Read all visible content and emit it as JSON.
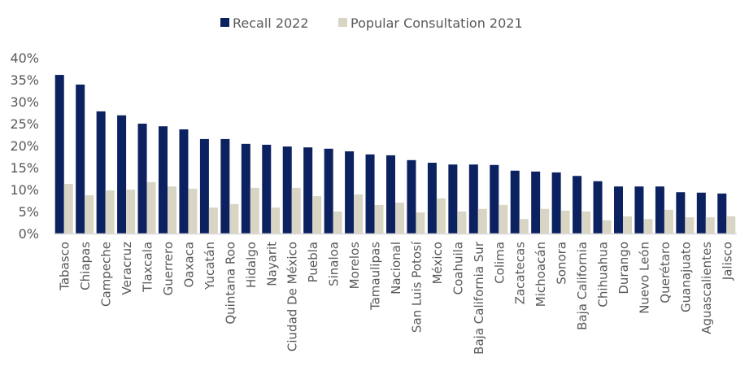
{
  "chart_data": {
    "type": "bar",
    "title": "",
    "xlabel": "",
    "ylabel": "",
    "ylim": [
      0,
      40
    ],
    "yticks": [
      "0%",
      "5%",
      "10%",
      "15%",
      "20%",
      "25%",
      "30%",
      "35%",
      "40%"
    ],
    "ytick_values": [
      0,
      5,
      10,
      15,
      20,
      25,
      30,
      35,
      40
    ],
    "grid": false,
    "legend_position": "top-center",
    "categories": [
      "Tabasco",
      "Chiapas",
      "Campeche",
      "Veracruz",
      "Tlaxcala",
      "Guerrero",
      "Oaxaca",
      "Yucatán",
      "Quintana Roo",
      "Hidalgo",
      "Nayarit",
      "Ciudad De México",
      "Puebla",
      "Sinaloa",
      "Morelos",
      "Tamaulipas",
      "Nacional",
      "San Luis Potosí",
      "México",
      "Coahuila",
      "Baja California Sur",
      "Colima",
      "Zacatecas",
      "Michoacán",
      "Sonora",
      "Baja California",
      "Chihuahua",
      "Durango",
      "Nuevo León",
      "Querétaro",
      "Guanajuato",
      "Aguascalientes",
      "Jalisco"
    ],
    "series": [
      {
        "name": "Recall 2022",
        "color": "#0b2160",
        "values": [
          36.1,
          33.9,
          27.8,
          26.9,
          25.0,
          24.4,
          23.7,
          21.5,
          21.5,
          20.4,
          20.2,
          19.8,
          19.6,
          19.3,
          18.7,
          18.0,
          17.8,
          16.7,
          16.1,
          15.7,
          15.7,
          15.6,
          14.3,
          14.1,
          13.9,
          13.1,
          11.9,
          10.7,
          10.7,
          10.7,
          9.4,
          9.3,
          9.1
        ]
      },
      {
        "name": "Popular Consultation 2021",
        "color": "#d9d5c5",
        "values": [
          11.3,
          8.7,
          9.8,
          10.0,
          11.7,
          10.7,
          10.2,
          5.9,
          6.7,
          10.4,
          5.9,
          10.4,
          8.5,
          5.0,
          8.9,
          6.5,
          7.0,
          4.8,
          8.0,
          5.0,
          5.6,
          6.5,
          3.3,
          5.6,
          5.2,
          5.0,
          3.0,
          3.9,
          3.3,
          5.4,
          3.7,
          3.7,
          3.9
        ]
      }
    ],
    "axis_color": "#d9d9d9"
  }
}
